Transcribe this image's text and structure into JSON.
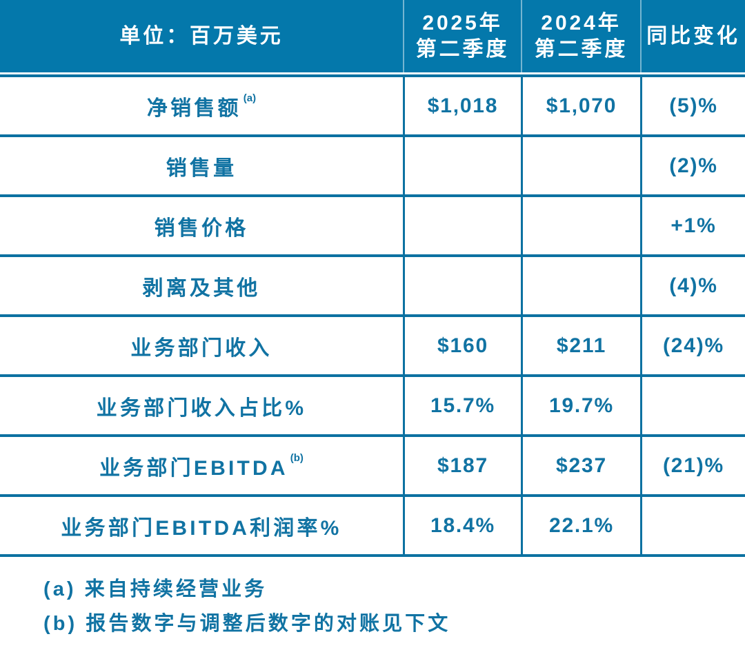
{
  "colors": {
    "header_bg": "#0478AB",
    "grid_line": "#0C71A1",
    "body_text": "#1173A3",
    "header_text": "#FFFFFF"
  },
  "table": {
    "header": {
      "unit_label": "单位：百万美元",
      "q2_2025_line1": "2025年",
      "q2_2025_line2": "第二季度",
      "q2_2024_line1": "2024年",
      "q2_2024_line2": "第二季度",
      "yoy_label": "同比变化"
    },
    "rows": [
      {
        "label": "净销售额",
        "sup": "(a)",
        "q2_2025": "$1,018",
        "q2_2024": "$1,070",
        "yoy": "(5)%"
      },
      {
        "label": "销售量",
        "sup": "",
        "q2_2025": "",
        "q2_2024": "",
        "yoy": "(2)%"
      },
      {
        "label": "销售价格",
        "sup": "",
        "q2_2025": "",
        "q2_2024": "",
        "yoy": "+1%"
      },
      {
        "label": "剥离及其他",
        "sup": "",
        "q2_2025": "",
        "q2_2024": "",
        "yoy": "(4)%"
      },
      {
        "label": "业务部门收入",
        "sup": "",
        "q2_2025": "$160",
        "q2_2024": "$211",
        "yoy": "(24)%"
      },
      {
        "label": "业务部门收入占比%",
        "sup": "",
        "q2_2025": "15.7%",
        "q2_2024": "19.7%",
        "yoy": ""
      },
      {
        "label": "业务部门EBITDA",
        "sup": "(b)",
        "q2_2025": "$187",
        "q2_2024": "$237",
        "yoy": "(21)%"
      },
      {
        "label": "业务部门EBITDA利润率%",
        "sup": "",
        "q2_2025": "18.4%",
        "q2_2024": "22.1%",
        "yoy": ""
      }
    ],
    "footnotes": [
      "(a) 来自持续经营业务",
      "(b) 报告数字与调整后数字的对账见下文"
    ]
  }
}
